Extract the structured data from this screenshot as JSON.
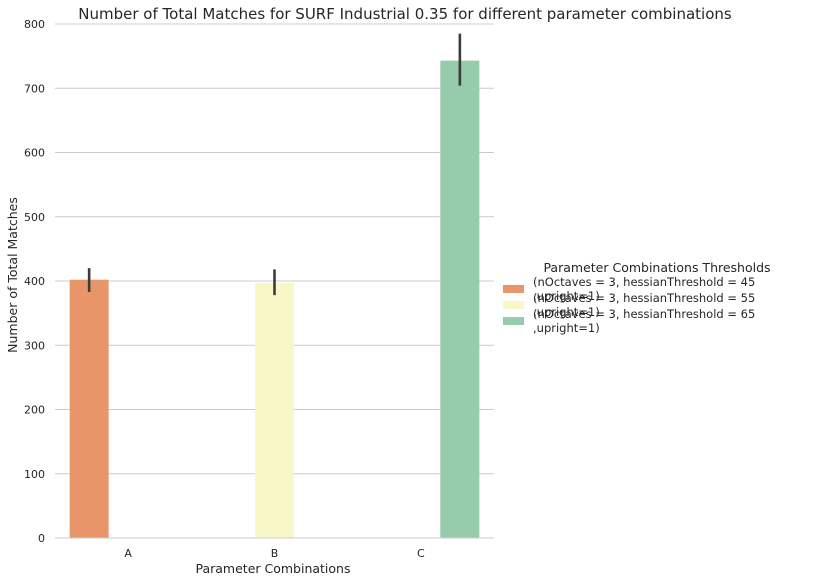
{
  "chart_data": {
    "type": "bar",
    "title": "Number of Total Matches for SURF Industrial 0.35 for different parameter combinations",
    "xlabel": "Parameter Combinations",
    "ylabel": "Number of Total Matches",
    "categories": [
      "A",
      "B",
      "C"
    ],
    "ylim": [
      0,
      800
    ],
    "yticks": [
      0,
      100,
      200,
      300,
      400,
      500,
      600,
      700,
      800
    ],
    "grid": "horizontal",
    "legend_position": "right",
    "legend_title": "Parameter Combinations Thresholds",
    "series": [
      {
        "name": "(nOctaves = 3, hessianThreshold = 45 ,upright=1)",
        "color": "#e8956a",
        "values": [
          402,
          null,
          null
        ],
        "error_low": [
          383,
          null,
          null
        ],
        "error_high": [
          420,
          null,
          null
        ]
      },
      {
        "name": "(nOctaves = 3, hessianThreshold = 55 ,upright=1)",
        "color": "#f8f7c8",
        "values": [
          null,
          397,
          null
        ],
        "error_low": [
          null,
          378,
          null
        ],
        "error_high": [
          null,
          418,
          null
        ]
      },
      {
        "name": "(nOctaves = 3, hessianThreshold = 65 ,upright=1)",
        "color": "#96cbab",
        "values": [
          null,
          null,
          743
        ],
        "error_low": [
          null,
          null,
          704
        ],
        "error_high": [
          null,
          null,
          785
        ]
      }
    ]
  }
}
